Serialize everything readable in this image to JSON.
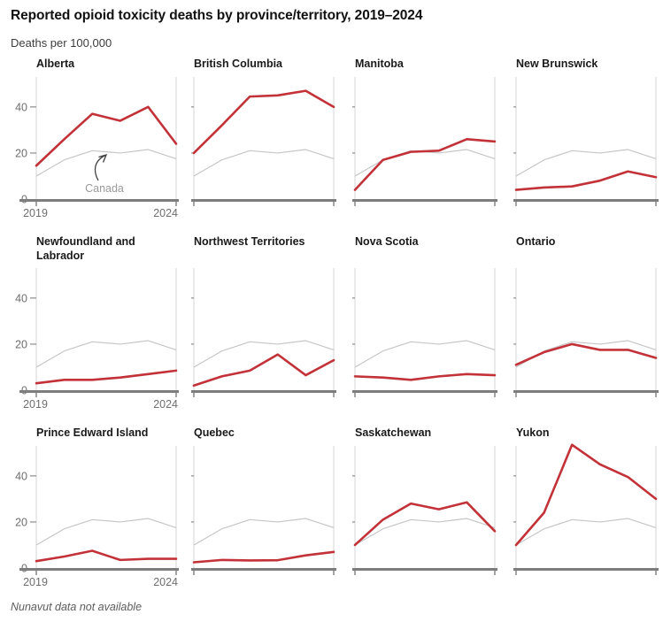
{
  "header": {
    "title": "Reported opioid toxicity deaths by province/territory, 2019–2024",
    "subtitle": "Deaths per 100,000"
  },
  "footer": {
    "note": "Nunavut data not available"
  },
  "colors": {
    "province_line": "#c23238",
    "canada_line": "#c6c6c6",
    "gridline": "#d4d4d4",
    "axis": "#7d7d7d",
    "tick": "#8c8c8c",
    "tick_label": "#6e6e6e",
    "annotation_text": "#9a9a9a",
    "annotation_arrow": "#3f3f3f"
  },
  "chart_data": {
    "type": "line",
    "grid_layout": "3 rows x 4 columns of small multiples",
    "x": [
      2019,
      2020,
      2021,
      2022,
      2023,
      2024
    ],
    "x_tick_labels": [
      "2019",
      "2024"
    ],
    "y_ticks": [
      0,
      20,
      40
    ],
    "y_tick_labels": [
      "0",
      "20",
      "40"
    ],
    "ylim": [
      0,
      53
    ],
    "ylabel": "Deaths per 100,000",
    "canada_series": {
      "name": "Canada",
      "values": [
        10,
        17,
        21,
        20,
        21.5,
        17.5
      ]
    },
    "annotation": {
      "label": "Canada",
      "panel": "Alberta",
      "points_to": "canada line"
    },
    "panels": [
      {
        "title": "Alberta",
        "values": [
          14.5,
          26,
          37,
          34,
          40,
          24
        ]
      },
      {
        "title": "British Columbia",
        "values": [
          20,
          32,
          44.5,
          45,
          47,
          40
        ]
      },
      {
        "title": "Manitoba",
        "values": [
          4,
          17,
          20.5,
          21,
          26,
          25
        ]
      },
      {
        "title": "New Brunswick",
        "values": [
          4,
          5,
          5.5,
          8,
          12,
          9.5
        ]
      },
      {
        "title": "Newfoundland and Labrador",
        "values": [
          3,
          4.5,
          4.5,
          5.5,
          7,
          8.5
        ]
      },
      {
        "title": "Northwest Territories",
        "values": [
          2,
          6,
          8.5,
          15.5,
          6.5,
          13
        ]
      },
      {
        "title": "Nova Scotia",
        "values": [
          6,
          5.5,
          4.5,
          6,
          7,
          6.5
        ]
      },
      {
        "title": "Ontario",
        "values": [
          11,
          16.5,
          20,
          17.5,
          17.5,
          14
        ]
      },
      {
        "title": "Prince Edward Island",
        "values": [
          3,
          5,
          7.5,
          3.5,
          4,
          4
        ]
      },
      {
        "title": "Quebec",
        "values": [
          2.5,
          3.5,
          3.3,
          3.4,
          5.5,
          7
        ]
      },
      {
        "title": "Saskatchewan",
        "values": [
          10,
          21,
          28,
          25.5,
          28.5,
          16
        ]
      },
      {
        "title": "Yukon",
        "values": [
          10,
          24,
          53.5,
          45,
          39.5,
          30
        ]
      }
    ]
  }
}
